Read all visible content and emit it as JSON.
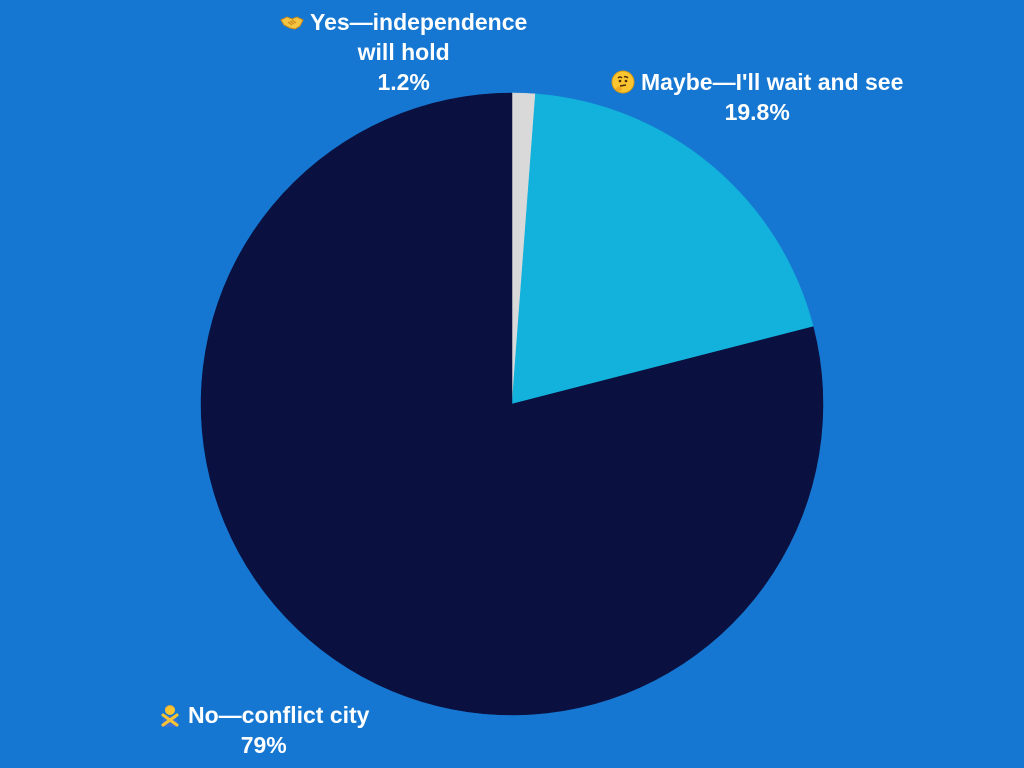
{
  "chart_data": {
    "type": "pie",
    "start_angle_deg": 0,
    "direction": "clockwise",
    "slices": [
      {
        "label": "Yes—independence will hold",
        "label_lines": [
          "Yes—independence",
          "will hold"
        ],
        "icon": "handshake-icon",
        "value": 1.2,
        "value_label": "1.2%",
        "color": "#d9d9d9"
      },
      {
        "label": "Maybe—I'll wait and see",
        "label_lines": [
          "Maybe—I'll wait and see"
        ],
        "icon": "thinking-face-icon",
        "value": 19.8,
        "value_label": "19.8%",
        "color": "#12b2dc"
      },
      {
        "label": "No—conflict city",
        "label_lines": [
          "No—conflict city"
        ],
        "icon": "person-gesturing-no-icon",
        "value": 79,
        "value_label": "79%",
        "color": "#0a103f"
      }
    ]
  },
  "theme": {
    "background": "#1577d1",
    "label_color": "#ffffff"
  }
}
